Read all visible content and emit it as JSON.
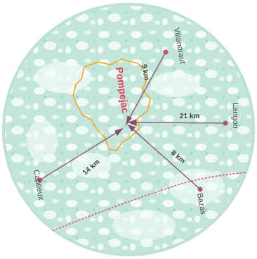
{
  "map": {
    "center_town": "Pompejac",
    "colors": {
      "water_green": "#c3e6dc",
      "land_light": "#f3fbf8",
      "ring": "#bfe0d7",
      "commune_outline": "#f5a623",
      "route_arrow": "#8e4d6b",
      "town_dot": "#b2507e",
      "highway": "#e05a7a",
      "center_label": "#e0405a"
    },
    "routes": [
      {
        "town": "Villandraut",
        "distance": "9 km"
      },
      {
        "town": "Langon",
        "distance": "21 km"
      },
      {
        "town": "Bazas",
        "distance": "8 km"
      },
      {
        "town": "Captieux",
        "distance": "14 km"
      }
    ]
  }
}
